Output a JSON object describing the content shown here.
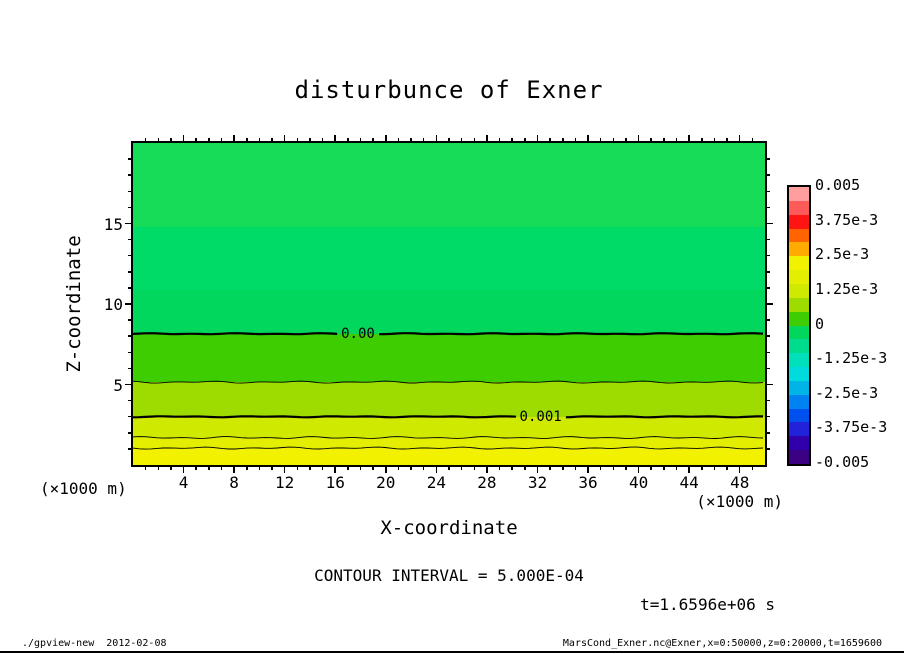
{
  "title": "disturbunce of Exner",
  "axes": {
    "x": {
      "label": "X-coordinate",
      "units_left": "(×1000 m)",
      "units_right": "(×1000 m)"
    },
    "y": {
      "label": "Z-coordinate"
    }
  },
  "annotations": {
    "contour_interval": "CONTOUR INTERVAL = 5.000E-04",
    "time": "t=1.6596e+06 s"
  },
  "footer": {
    "left": "./gpview-new  2012-02-08",
    "right": "MarsCond_Exner.nc@Exner,x=0:50000,z=0:20000,t=1659600"
  },
  "colorbar": {
    "labels": [
      "0.005",
      "3.75e-3",
      "2.5e-3",
      "1.25e-3",
      "0",
      "-1.25e-3",
      "-2.5e-3",
      "-3.75e-3",
      "-0.005"
    ],
    "colors": [
      "#ff9e9e",
      "#ff5a5a",
      "#ff1414",
      "#ff6400",
      "#ffaa00",
      "#f2f200",
      "#e4ee00",
      "#cfe900",
      "#9edc00",
      "#3ecd00",
      "#00d75c",
      "#00dc8e",
      "#00e0bb",
      "#00dcdc",
      "#00b4e8",
      "#0082f0",
      "#0050f0",
      "#2222d8",
      "#3200aa",
      "#3c0082"
    ]
  },
  "chart_data": {
    "type": "heatmap",
    "subtype": "filled_contour",
    "title": "disturbunce of Exner",
    "xlabel": "X-coordinate (×1000 m)",
    "ylabel": "Z-coordinate (×1000 m)",
    "xlim": [
      0,
      50
    ],
    "ylim": [
      0,
      20
    ],
    "x_ticks": [
      4,
      8,
      12,
      16,
      20,
      24,
      28,
      32,
      36,
      40,
      44,
      48
    ],
    "y_ticks": [
      5,
      10,
      15
    ],
    "x_minor_step": 1,
    "y_minor_step": 1,
    "grid": false,
    "legend_position": "right-colorbar",
    "contour_interval": 0.0005,
    "colorbar_range": [
      -0.005,
      0.005
    ],
    "time_label": "t=1.6596e+06 s",
    "bands": [
      {
        "z_from": 0,
        "z_to": 1.05,
        "color": "#f2f200",
        "value_band": [
          0.002,
          0.0025
        ]
      },
      {
        "z_from": 1.05,
        "z_to": 1.7,
        "color": "#e4ee00",
        "value_band": [
          0.0015,
          0.002
        ]
      },
      {
        "z_from": 1.7,
        "z_to": 3.0,
        "color": "#cfe900",
        "value_band": [
          0.001,
          0.0015
        ]
      },
      {
        "z_from": 3.0,
        "z_to": 5.15,
        "color": "#9edc00",
        "value_band": [
          0.0005,
          0.001
        ]
      },
      {
        "z_from": 5.15,
        "z_to": 8.15,
        "color": "#3ecd00",
        "value_band": [
          0,
          0.0005
        ]
      },
      {
        "z_from": 8.15,
        "z_to": 10.9,
        "color": "#00d75c",
        "value_band": [
          -0.0005,
          0
        ]
      },
      {
        "z_from": 10.9,
        "z_to": 14.8,
        "color": "#00da66",
        "value_band": [
          -0.0005,
          0
        ]
      },
      {
        "z_from": 14.8,
        "z_to": 20,
        "color": "#17dc58",
        "value_band": [
          -0.0005,
          0
        ]
      }
    ],
    "contours": [
      {
        "z": 1.05,
        "value": 0.002,
        "thick": false
      },
      {
        "z": 1.7,
        "value": 0.0015,
        "thick": false
      },
      {
        "z": 3.0,
        "value": 0.001,
        "thick": true,
        "label": "0.001",
        "label_x_frac": 0.645
      },
      {
        "z": 5.15,
        "value": 0.0005,
        "thick": false
      },
      {
        "z": 8.15,
        "value": 0.0,
        "thick": true,
        "label": "0.00",
        "label_x_frac": 0.356
      }
    ]
  }
}
